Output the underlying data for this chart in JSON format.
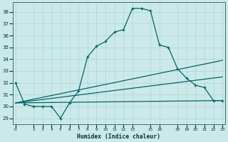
{
  "xlabel": "Humidex (Indice chaleur)",
  "bg_color": "#cce9e9",
  "grid_color": "#aad4d4",
  "line_color": "#006666",
  "ylim": [
    28.5,
    38.8
  ],
  "xlim": [
    -0.3,
    23.3
  ],
  "yticks": [
    29,
    30,
    31,
    32,
    33,
    34,
    35,
    36,
    37,
    38
  ],
  "x_tick_positions": [
    0,
    2,
    3,
    4,
    5,
    6,
    7,
    8,
    9,
    10,
    11,
    12,
    13,
    15,
    16,
    18,
    19,
    20,
    21,
    22,
    23
  ],
  "x_tick_labels": [
    "0",
    "2",
    "3",
    "4",
    "5",
    "6",
    "7",
    "8",
    "9",
    "10",
    "11",
    "12",
    "13",
    "15",
    "16",
    "18",
    "19",
    "20",
    "21",
    "22",
    "23"
  ],
  "main_x": [
    0,
    1,
    2,
    3,
    4,
    5,
    6,
    7,
    8,
    9,
    10,
    11,
    12,
    13,
    14,
    15,
    16,
    17,
    18,
    19,
    20,
    21,
    22,
    23
  ],
  "main_y": [
    32,
    30.2,
    30,
    30,
    30,
    29,
    30.3,
    31.3,
    34.2,
    35.1,
    35.5,
    36.3,
    36.5,
    38.3,
    38.3,
    38.1,
    35.2,
    35.0,
    33.2,
    32.4,
    31.8,
    31.6,
    30.5,
    30.5
  ],
  "flat_line_x": [
    0,
    23
  ],
  "flat_line_y": [
    30.3,
    30.5
  ],
  "mid_line_x": [
    0,
    23
  ],
  "mid_line_y": [
    30.3,
    32.5
  ],
  "steep_line_x": [
    0,
    23
  ],
  "steep_line_y": [
    30.3,
    33.9
  ]
}
